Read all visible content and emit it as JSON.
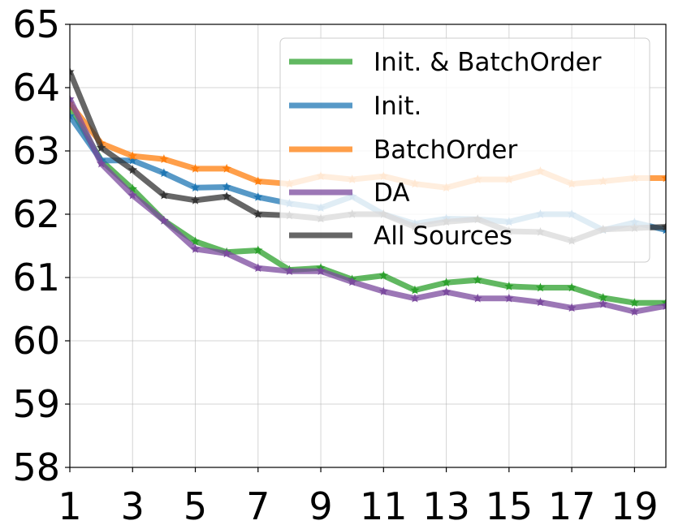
{
  "chart_data": {
    "type": "line",
    "title": "",
    "xlabel": "",
    "ylabel": "",
    "xlim": [
      1,
      20
    ],
    "ylim": [
      58,
      65
    ],
    "x_ticks": [
      1,
      3,
      5,
      7,
      9,
      11,
      13,
      15,
      17,
      19
    ],
    "y_ticks": [
      58,
      59,
      60,
      61,
      62,
      63,
      64,
      65
    ],
    "grid": true,
    "legend_position": "top-right",
    "x": [
      1,
      2,
      3,
      4,
      5,
      6,
      7,
      8,
      9,
      10,
      11,
      12,
      13,
      14,
      15,
      16,
      17,
      18,
      19,
      20
    ],
    "series": [
      {
        "name": "Init. & BatchOrder",
        "color": "#2ca02c",
        "values": [
          63.7,
          62.85,
          62.4,
          61.9,
          61.57,
          61.4,
          61.43,
          61.12,
          61.15,
          60.97,
          61.03,
          60.8,
          60.92,
          60.96,
          60.86,
          60.84,
          60.84,
          60.68,
          60.6,
          60.6
        ]
      },
      {
        "name": "Init.",
        "color": "#1f77b4",
        "values": [
          63.55,
          62.85,
          62.85,
          62.65,
          62.42,
          62.43,
          62.27,
          62.17,
          62.1,
          62.28,
          62.0,
          61.85,
          61.93,
          61.92,
          61.88,
          62.0,
          62.0,
          61.75,
          61.87,
          61.75
        ]
      },
      {
        "name": "BatchOrder",
        "color": "#ff7f0e",
        "values": [
          63.75,
          63.12,
          62.92,
          62.87,
          62.72,
          62.72,
          62.52,
          62.48,
          62.6,
          62.55,
          62.6,
          62.48,
          62.42,
          62.55,
          62.55,
          62.68,
          62.48,
          62.52,
          62.57,
          62.57
        ]
      },
      {
        "name": "DA",
        "color": "#7b4a9e",
        "values": [
          63.82,
          62.8,
          62.3,
          61.9,
          61.45,
          61.38,
          61.15,
          61.1,
          61.1,
          60.93,
          60.78,
          60.67,
          60.77,
          60.67,
          60.67,
          60.61,
          60.52,
          60.58,
          60.46,
          60.55
        ]
      },
      {
        "name": "All Sources",
        "color": "#333333",
        "values": [
          64.25,
          63.05,
          62.7,
          62.3,
          62.22,
          62.28,
          62.0,
          61.98,
          61.93,
          62.0,
          62.0,
          61.8,
          61.88,
          61.92,
          61.73,
          61.72,
          61.58,
          61.76,
          61.78,
          61.8
        ]
      }
    ]
  }
}
